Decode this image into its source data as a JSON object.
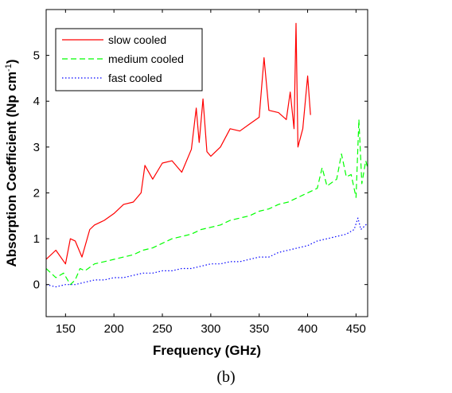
{
  "chart_data": {
    "type": "line",
    "title": "",
    "xlabel": "Frequency (GHz)",
    "ylabel": "Absorption Coefficient (Np cm",
    "ylabel_sup": "-1",
    "ylabel_close": ")",
    "xlim": [
      130,
      462
    ],
    "ylim": [
      -0.7,
      6.0
    ],
    "xticks": [
      150,
      200,
      250,
      300,
      350,
      400,
      450
    ],
    "yticks": [
      0,
      1,
      2,
      3,
      4,
      5
    ],
    "grid": false,
    "legend_position": "top-left",
    "caption": "(b)",
    "series": [
      {
        "name": "slow cooled",
        "color": "#ff0000",
        "style": "solid",
        "x": [
          130,
          140,
          150,
          155,
          160,
          167,
          175,
          180,
          190,
          200,
          210,
          220,
          228,
          232,
          240,
          250,
          260,
          270,
          280,
          285,
          288,
          292,
          296,
          300,
          310,
          320,
          330,
          340,
          350,
          355,
          360,
          370,
          378,
          382,
          386,
          388,
          390,
          395,
          400,
          403
        ],
        "y": [
          0.55,
          0.75,
          0.45,
          1.0,
          0.95,
          0.6,
          1.2,
          1.3,
          1.4,
          1.55,
          1.75,
          1.8,
          2.0,
          2.6,
          2.3,
          2.65,
          2.7,
          2.45,
          2.95,
          3.85,
          3.1,
          4.05,
          2.9,
          2.8,
          3.0,
          3.4,
          3.35,
          3.5,
          3.65,
          4.95,
          3.8,
          3.75,
          3.6,
          4.2,
          3.4,
          5.7,
          3.0,
          3.4,
          4.55,
          3.7
        ]
      },
      {
        "name": "medium cooled",
        "color": "#00ff00",
        "style": "dashed",
        "x": [
          130,
          140,
          148,
          155,
          160,
          165,
          170,
          180,
          190,
          200,
          210,
          220,
          230,
          240,
          250,
          260,
          270,
          280,
          290,
          300,
          310,
          320,
          330,
          340,
          350,
          360,
          370,
          380,
          390,
          400,
          410,
          415,
          420,
          430,
          435,
          440,
          445,
          450,
          453,
          456,
          460,
          462
        ],
        "y": [
          0.35,
          0.15,
          0.25,
          0.0,
          0.1,
          0.35,
          0.3,
          0.45,
          0.5,
          0.55,
          0.6,
          0.65,
          0.75,
          0.8,
          0.9,
          1.0,
          1.05,
          1.1,
          1.2,
          1.25,
          1.3,
          1.4,
          1.45,
          1.5,
          1.6,
          1.65,
          1.75,
          1.8,
          1.9,
          2.0,
          2.1,
          2.55,
          2.15,
          2.3,
          2.85,
          2.35,
          2.4,
          1.9,
          3.6,
          2.2,
          2.7,
          2.55
        ]
      },
      {
        "name": "fast cooled",
        "color": "#0000ff",
        "style": "dotted",
        "x": [
          130,
          140,
          150,
          160,
          170,
          180,
          190,
          200,
          210,
          220,
          230,
          240,
          250,
          260,
          270,
          280,
          290,
          300,
          310,
          320,
          330,
          340,
          350,
          360,
          370,
          380,
          390,
          400,
          410,
          420,
          430,
          440,
          448,
          452,
          455,
          460,
          462
        ],
        "y": [
          0.0,
          -0.05,
          0.0,
          0.0,
          0.05,
          0.1,
          0.1,
          0.15,
          0.15,
          0.2,
          0.25,
          0.25,
          0.3,
          0.3,
          0.35,
          0.35,
          0.4,
          0.45,
          0.45,
          0.5,
          0.5,
          0.55,
          0.6,
          0.6,
          0.7,
          0.75,
          0.8,
          0.85,
          0.95,
          1.0,
          1.05,
          1.1,
          1.2,
          1.45,
          1.2,
          1.3,
          1.35
        ]
      }
    ]
  }
}
